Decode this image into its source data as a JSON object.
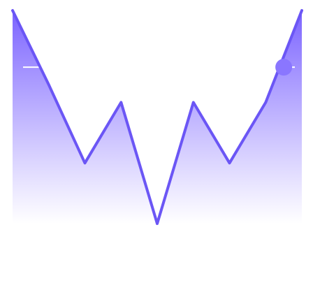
{
  "chart_data": {
    "type": "area",
    "title": "",
    "xlabel": "",
    "ylabel": "",
    "x": [
      0,
      1,
      2,
      3,
      4,
      5,
      6,
      7,
      8
    ],
    "series": [
      {
        "values": [
          100,
          62,
          22,
          53,
          -9,
          53,
          22,
          53,
          100
        ]
      }
    ],
    "ylim": [
      -9,
      100
    ],
    "reference_value": 71,
    "marker": {
      "x": 7.5,
      "y": 71
    },
    "grid": false,
    "legend": "none",
    "colors": {
      "line": "#6b56f5",
      "fill_top": "#7b63ff",
      "fill_bottom": "#ffffff",
      "marker": "#8a76ff",
      "reference_line": "#ffffff"
    }
  }
}
